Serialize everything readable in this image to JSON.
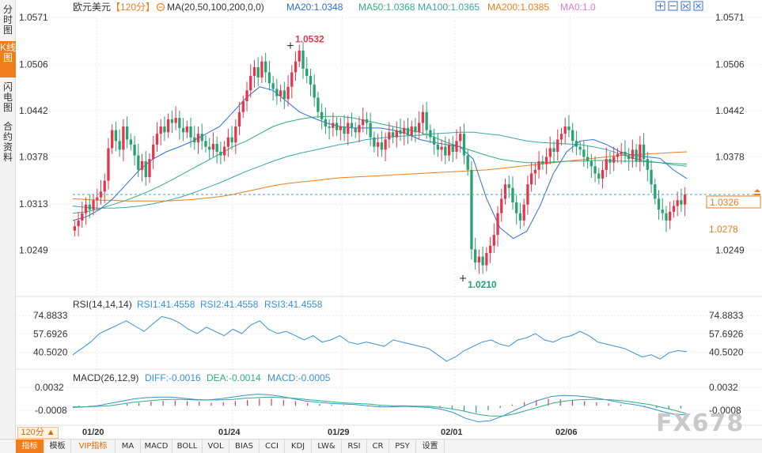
{
  "side_tabs": [
    {
      "label": "分时图",
      "active": false
    },
    {
      "label": "K线图",
      "active": true
    },
    {
      "label": "闪电图",
      "active": false
    },
    {
      "label": "合约资料",
      "active": false
    }
  ],
  "header": {
    "symbol": "欧元美元",
    "period": "【120分】",
    "ma_label": "MA(20,50,100,200,0,0)",
    "ma_values": [
      {
        "text": "MA20:1.0348",
        "color": "#2f6fd6"
      },
      {
        "text": "MA50:1.0368",
        "color": "#2fae86"
      },
      {
        "text": "MA100:1.0365",
        "color": "#3aa6a6"
      },
      {
        "text": "MA200:1.0385",
        "color": "#f07d1b"
      },
      {
        "text": "MA0:1.0",
        "color": "#e07ad0"
      }
    ],
    "toolbar_icons": [
      "fullscreen-icon",
      "minus-icon",
      "expand-icon",
      "close-icon"
    ]
  },
  "price_axis": {
    "ticks": [
      "1.0571",
      "1.0506",
      "1.0442",
      "1.0378",
      "1.0313",
      "1.0249"
    ],
    "current_price": "1.0326",
    "low_price_label": "1.0278",
    "high_marker": "1.0532",
    "low_marker": "1.0210"
  },
  "rsi": {
    "label": "RSI(14,14,14)",
    "values": [
      {
        "text": "RSI1:41.4558",
        "color": "#3a8fd6"
      },
      {
        "text": "RSI2:41.4558",
        "color": "#3a8fd6"
      },
      {
        "text": "RSI3:41.4558",
        "color": "#3a8fd6"
      }
    ],
    "ticks": [
      "74.8833",
      "57.6926",
      "40.5020"
    ]
  },
  "macd": {
    "label": "MACD(26,12,9)",
    "values": [
      {
        "text": "DIFF:-0.0016",
        "color": "#3a8fd6"
      },
      {
        "text": "DEA:-0.0014",
        "color": "#2fae86"
      },
      {
        "text": "MACD:-0.0005",
        "color": "#3a8fd6"
      }
    ],
    "ticks": [
      "0.0032",
      "-0.0008"
    ]
  },
  "date_labels": [
    "01/20",
    "01/24",
    "01/29",
    "02/01",
    "02/06"
  ],
  "period_badge": "120分 ▲",
  "bottom_tabs": [
    {
      "label": "指标",
      "active": true,
      "vip": false
    },
    {
      "label": "模板",
      "active": false,
      "vip": false
    },
    {
      "label": "VIP指标",
      "active": false,
      "vip": true
    },
    {
      "label": "MA",
      "active": false,
      "vip": false
    },
    {
      "label": "MACD",
      "active": false,
      "vip": false
    },
    {
      "label": "BOLL",
      "active": false,
      "vip": false
    },
    {
      "label": "VOL",
      "active": false,
      "vip": false
    },
    {
      "label": "BIAS",
      "active": false,
      "vip": false
    },
    {
      "label": "CCI",
      "active": false,
      "vip": false
    },
    {
      "label": "KDJ",
      "active": false,
      "vip": false
    },
    {
      "label": "LW&",
      "active": false,
      "vip": false
    },
    {
      "label": "RSI",
      "active": false,
      "vip": false
    },
    {
      "label": "CR",
      "active": false,
      "vip": false
    },
    {
      "label": "PSY",
      "active": false,
      "vip": false
    },
    {
      "label": "设置",
      "active": false,
      "vip": false
    }
  ],
  "watermark": "FX678",
  "colors": {
    "up": "#e0394f",
    "down": "#28a36f",
    "ma20": "#2f6fd6",
    "ma50": "#2fae86",
    "ma100": "#3aa6a6",
    "ma200": "#f07d1b",
    "accent": "#f07d1b"
  },
  "chart_data": {
    "type": "candlestick",
    "closes": [
      1.0282,
      1.029,
      1.03,
      1.0312,
      1.0305,
      1.0318,
      1.0322,
      1.033,
      1.0345,
      1.039,
      1.0415,
      1.04,
      1.0388,
      1.042,
      1.0402,
      1.0395,
      1.038,
      1.036,
      1.0372,
      1.035,
      1.0375,
      1.0395,
      1.041,
      1.042,
      1.0412,
      1.043,
      1.0425,
      1.0432,
      1.0418,
      1.0412,
      1.042,
      1.0405,
      1.0398,
      1.041,
      1.04,
      1.0392,
      1.0388,
      1.0396,
      1.0385,
      1.038,
      1.0392,
      1.0405,
      1.0398,
      1.042,
      1.044,
      1.0455,
      1.047,
      1.049,
      1.0502,
      1.0488,
      1.051,
      1.0495,
      1.048,
      1.0472,
      1.0462,
      1.047,
      1.0458,
      1.0475,
      1.0495,
      1.051,
      1.0525,
      1.05,
      1.049,
      1.0478,
      1.046,
      1.044,
      1.043,
      1.042,
      1.0418,
      1.0425,
      1.0415,
      1.042,
      1.041,
      1.0425,
      1.0418,
      1.0412,
      1.0422,
      1.043,
      1.0425,
      1.0405,
      1.0392,
      1.0398,
      1.0388,
      1.0402,
      1.0412,
      1.0405,
      1.0415,
      1.041,
      1.0418,
      1.0408,
      1.042,
      1.0412,
      1.0425,
      1.044,
      1.0415,
      1.0405,
      1.0395,
      1.0388,
      1.0392,
      1.038,
      1.0395,
      1.0385,
      1.04,
      1.041,
      1.038,
      1.036,
      1.025,
      1.0232,
      1.024,
      1.0228,
      1.0245,
      1.0255,
      1.027,
      1.03,
      1.032,
      1.034,
      1.0335,
      1.0315,
      1.03,
      1.029,
      1.0312,
      1.034,
      1.0355,
      1.036,
      1.0372,
      1.0368,
      1.0378,
      1.039,
      1.0385,
      1.0402,
      1.041,
      1.042,
      1.0415,
      1.04,
      1.0392,
      1.0388,
      1.0378,
      1.0372,
      1.0365,
      1.0355,
      1.0348,
      1.036,
      1.0375,
      1.037,
      1.0378,
      1.0382,
      1.0385,
      1.038,
      1.0375,
      1.0388,
      1.0372,
      1.0395,
      1.0375,
      1.036,
      1.034,
      1.032,
      1.0305,
      1.03,
      1.029,
      1.0302,
      1.031,
      1.0318,
      1.0312,
      1.0326
    ],
    "ma20": [
      1.029,
      1.0295,
      1.0305,
      1.032,
      1.034,
      1.036,
      1.0375,
      1.0385,
      1.0392,
      1.04,
      1.041,
      1.042,
      1.044,
      1.046,
      1.0475,
      1.047,
      1.0455,
      1.044,
      1.0432,
      1.0425,
      1.042,
      1.0418,
      1.0418,
      1.0418,
      1.0415,
      1.041,
      1.0402,
      1.0398,
      1.0395,
      1.0392,
      1.0375,
      1.032,
      1.028,
      1.0265,
      1.0275,
      1.031,
      1.0355,
      1.0385,
      1.04,
      1.0402,
      1.0395,
      1.0385,
      1.038,
      1.0378,
      1.0376,
      1.036,
      1.0348
    ],
    "ma50": [
      1.03,
      1.0302,
      1.0306,
      1.0312,
      1.0318,
      1.0325,
      1.0333,
      1.0342,
      1.0352,
      1.0362,
      1.0372,
      1.0382,
      1.0392,
      1.04,
      1.041,
      1.042,
      1.0426,
      1.043,
      1.0433,
      1.0434,
      1.0434,
      1.0432,
      1.0428,
      1.0424,
      1.042,
      1.0416,
      1.0412,
      1.0406,
      1.0398,
      1.0392,
      1.0386,
      1.038,
      1.0375,
      1.0372,
      1.037,
      1.037,
      1.0371,
      1.0372,
      1.0372,
      1.0373,
      1.0373,
      1.0372,
      1.0372,
      1.0371,
      1.037,
      1.0369,
      1.0368
    ],
    "ma100": [
      1.031,
      1.0308,
      1.0307,
      1.0307,
      1.0308,
      1.031,
      1.0313,
      1.0317,
      1.0322,
      1.0328,
      1.0335,
      1.0342,
      1.035,
      1.0358,
      1.0365,
      1.0372,
      1.0378,
      1.0383,
      1.0387,
      1.0391,
      1.0395,
      1.0398,
      1.0402,
      1.0404,
      1.0406,
      1.0407,
      1.0408,
      1.041,
      1.0411,
      1.0412,
      1.0412,
      1.041,
      1.0408,
      1.0404,
      1.04,
      1.0398,
      1.0397,
      1.0396,
      1.0395,
      1.0392,
      1.0388,
      1.0382,
      1.0376,
      1.0372,
      1.037,
      1.0367,
      1.0365
    ],
    "ma200": [
      1.032,
      1.0319,
      1.0318,
      1.0318,
      1.0317,
      1.0317,
      1.0317,
      1.0317,
      1.0318,
      1.0319,
      1.0321,
      1.0323,
      1.0326,
      1.033,
      1.0334,
      1.0338,
      1.0341,
      1.0343,
      1.0345,
      1.0347,
      1.0349,
      1.035,
      1.0351,
      1.0352,
      1.0353,
      1.0354,
      1.0355,
      1.0356,
      1.0357,
      1.0358,
      1.0359,
      1.036,
      1.0362,
      1.0364,
      1.0366,
      1.0368,
      1.037,
      1.0372,
      1.0374,
      1.0376,
      1.0378,
      1.038,
      1.0381,
      1.0382,
      1.0383,
      1.0384,
      1.0385
    ],
    "price_range": [
      1.021,
      1.0571
    ],
    "rsi": [
      38,
      44,
      50,
      58,
      62,
      66,
      70,
      65,
      60,
      67,
      74,
      72,
      68,
      62,
      58,
      64,
      60,
      56,
      62,
      58,
      66,
      70,
      62,
      58,
      60,
      56,
      52,
      56,
      50,
      52,
      56,
      50,
      48,
      50,
      48,
      46,
      52,
      50,
      48,
      46,
      44,
      38,
      32,
      36,
      42,
      46,
      50,
      52,
      48,
      46,
      52,
      54,
      58,
      52,
      50,
      54,
      56,
      60,
      56,
      50,
      48,
      46,
      44,
      40,
      36,
      38,
      34,
      40,
      42,
      41
    ],
    "rsi_range": [
      26,
      78
    ],
    "macd_hist": [
      -0.0002,
      -0.0002,
      -0.0001,
      0,
      0.0003,
      0.0005,
      0.0007,
      0.0008,
      0.0009,
      0.0008,
      0.0007,
      0.0005,
      0.0006,
      0.0008,
      0.001,
      0.0012,
      0.0012,
      0.001,
      0.0008,
      0.0005,
      0.0003,
      0.0002,
      0.0001,
      0,
      -0.0001,
      -0.0002,
      -0.0002,
      -0.0001,
      -0.0001,
      -0.0002,
      -0.0003,
      -0.0006,
      -0.001,
      -0.0012,
      -0.0008,
      -0.0004,
      0.0002,
      0.0006,
      0.001,
      0.0012,
      0.0011,
      0.0009,
      0.0008,
      0.0006,
      0.0004,
      0.0002,
      0,
      -0.0002,
      -0.0004,
      -0.0006,
      -0.0005
    ],
    "macd_diff": [
      -0.0003,
      -0.0002,
      0,
      0.0004,
      0.0008,
      0.0012,
      0.0014,
      0.0015,
      0.0015,
      0.0013,
      0.0011,
      0.001,
      0.0012,
      0.0015,
      0.0018,
      0.002,
      0.0019,
      0.0016,
      0.0012,
      0.0008,
      0.0006,
      0.0004,
      0.0003,
      0.0002,
      0,
      -0.0002,
      -0.0002,
      -0.0001,
      -0.0002,
      -0.0003,
      -0.0006,
      -0.0012,
      -0.0022,
      -0.0028,
      -0.0026,
      -0.0018,
      -0.0008,
      0.0002,
      0.001,
      0.0016,
      0.0018,
      0.0017,
      0.0015,
      0.0012,
      0.0008,
      0.0004,
      0.0001,
      -0.0004,
      -0.001,
      -0.0015,
      -0.0016
    ],
    "macd_dea": [
      -0.0002,
      -0.0002,
      -0.0001,
      0,
      0.0003,
      0.0006,
      0.0008,
      0.001,
      0.0011,
      0.0011,
      0.001,
      0.001,
      0.001,
      0.0011,
      0.0013,
      0.0014,
      0.0015,
      0.0014,
      0.0013,
      0.0011,
      0.0009,
      0.0007,
      0.0005,
      0.0004,
      0.0003,
      0.0001,
      0,
      0,
      -0.0001,
      -0.0001,
      -0.0003,
      -0.0006,
      -0.001,
      -0.0015,
      -0.0018,
      -0.0018,
      -0.0014,
      -0.0008,
      -0.0002,
      0.0004,
      0.0008,
      0.001,
      0.0011,
      0.0011,
      0.001,
      0.0008,
      0.0005,
      0.0002,
      -0.0003,
      -0.0008,
      -0.0014
    ],
    "macd_range": [
      -0.003,
      0.0036
    ]
  }
}
